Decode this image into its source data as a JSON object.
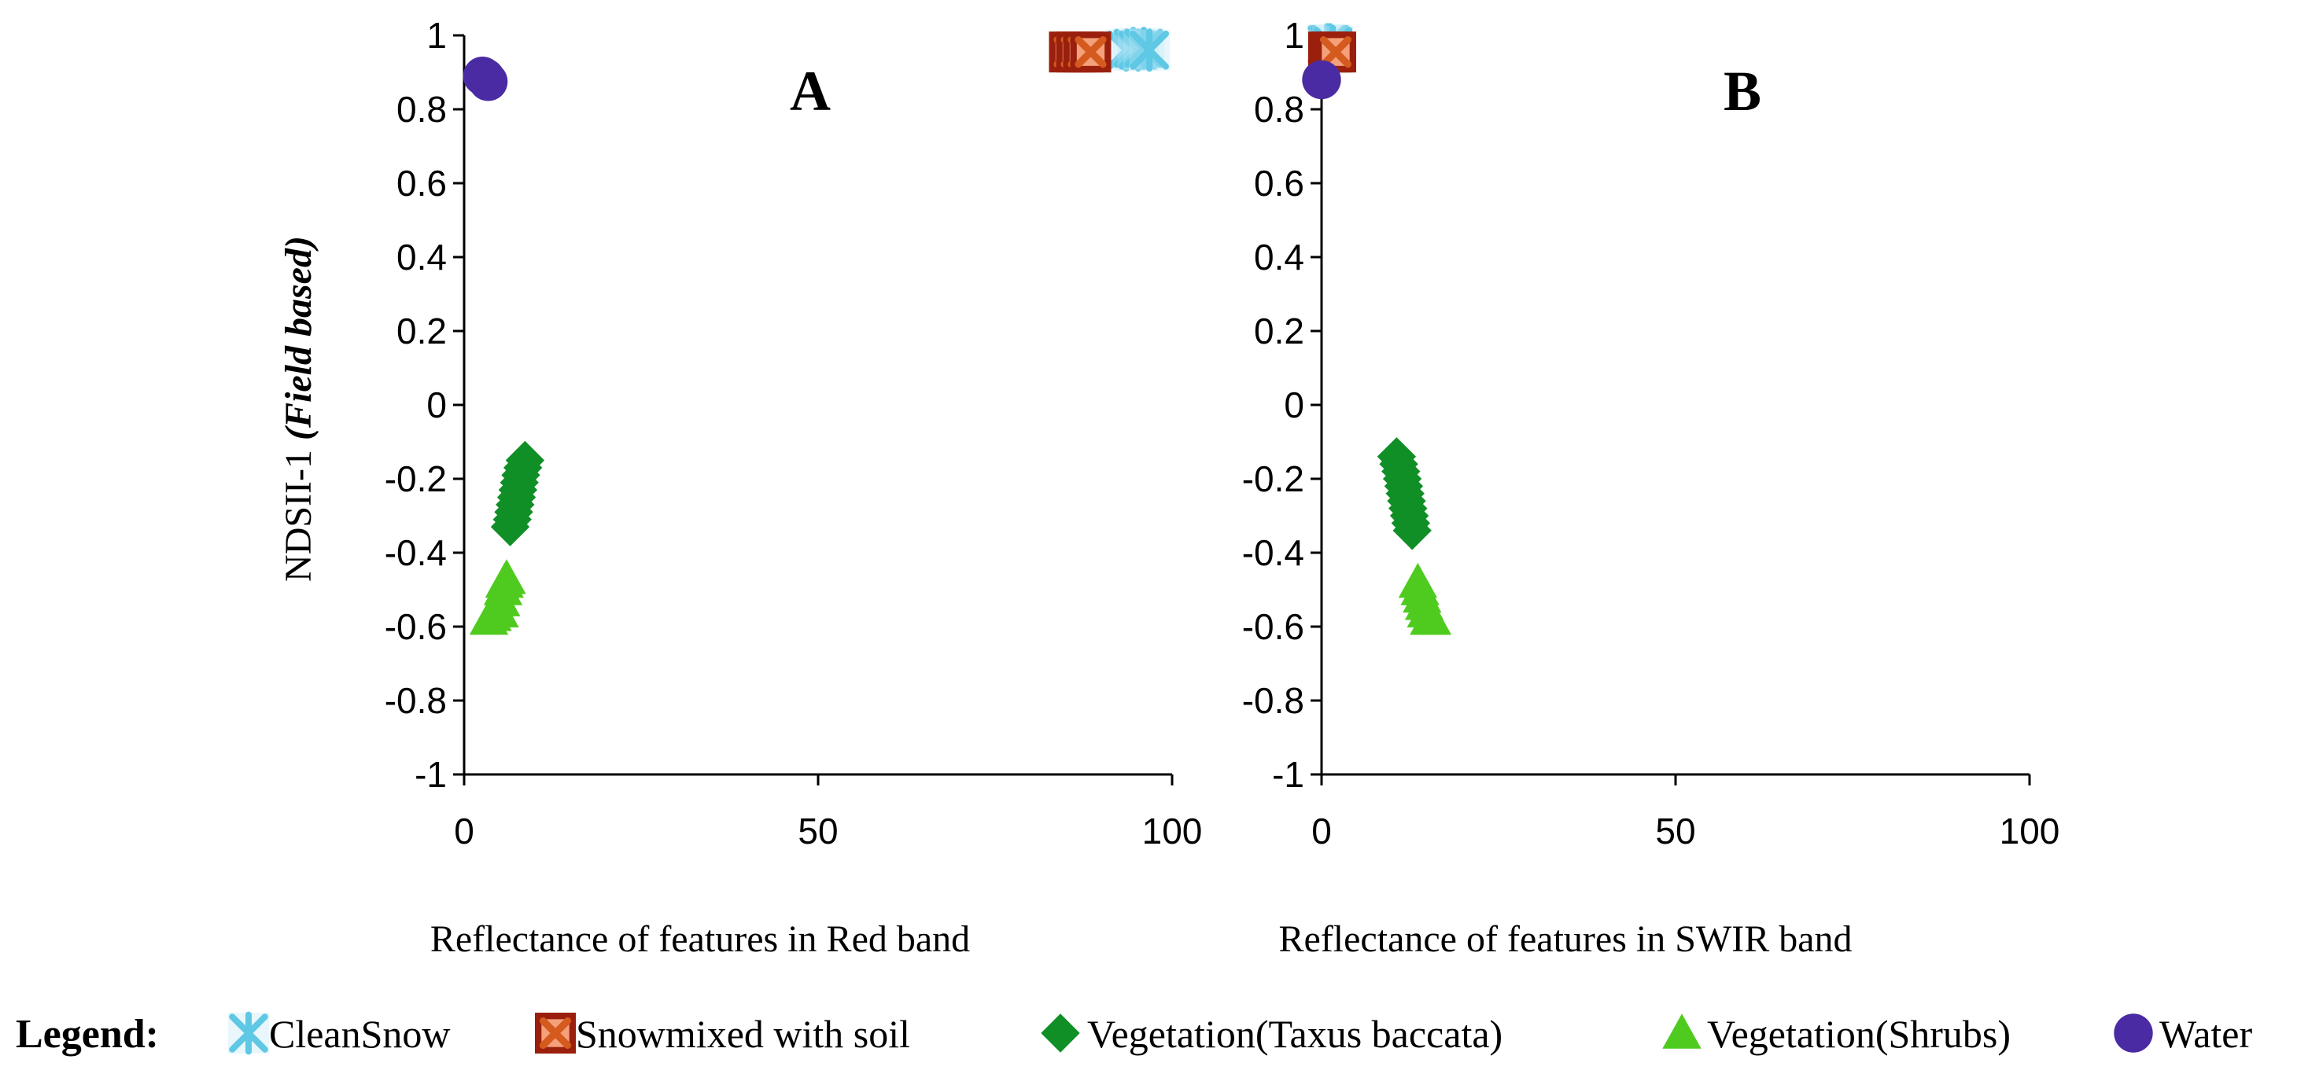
{
  "chart_data": [
    {
      "type": "scatter",
      "panel_label": "A",
      "title": "",
      "xlabel": "Reflectance of features in Red band",
      "ylabel": "NDSII-1",
      "ylabel_italic": "(Field based)",
      "xlim": [
        0,
        100
      ],
      "ylim": [
        -1,
        1
      ],
      "x_ticks": [
        "0",
        "50",
        "100"
      ],
      "y_ticks": [
        "-1",
        "-0.8",
        "-0.6",
        "-0.4",
        "-0.2",
        "0",
        "0.2",
        "0.4",
        "0.6",
        "0.8",
        "1"
      ],
      "grid": false,
      "series": [
        {
          "name": "CleanSnow",
          "points": [
            [
              93.5,
              0.96
            ],
            [
              94.5,
              0.965
            ],
            [
              95.2,
              0.96
            ],
            [
              96,
              0.965
            ],
            [
              96.8,
              0.96
            ]
          ]
        },
        {
          "name": "Snowmixed with soil",
          "points": [
            [
              85.5,
              0.955
            ],
            [
              86.5,
              0.955
            ],
            [
              87.5,
              0.955
            ],
            [
              88.5,
              0.955
            ]
          ]
        },
        {
          "name": "Vegetation(Taxus baccata)",
          "points": [
            [
              6.5,
              -0.33
            ],
            [
              6.8,
              -0.31
            ],
            [
              7,
              -0.29
            ],
            [
              7.2,
              -0.27
            ],
            [
              7.4,
              -0.25
            ],
            [
              7.6,
              -0.23
            ],
            [
              7.8,
              -0.21
            ],
            [
              8,
              -0.19
            ],
            [
              8.3,
              -0.17
            ],
            [
              8.6,
              -0.15
            ]
          ]
        },
        {
          "name": "Vegetation(Shrubs)",
          "points": [
            [
              3.5,
              -0.58
            ],
            [
              4,
              -0.57
            ],
            [
              4.5,
              -0.56
            ],
            [
              5,
              -0.56
            ],
            [
              5.2,
              -0.53
            ],
            [
              5.5,
              -0.5
            ],
            [
              5.7,
              -0.48
            ],
            [
              6,
              -0.47
            ]
          ]
        },
        {
          "name": "Water",
          "points": [
            [
              2.6,
              0.89
            ],
            [
              3,
              0.885
            ],
            [
              3.4,
              0.875
            ]
          ]
        }
      ]
    },
    {
      "type": "scatter",
      "panel_label": "B",
      "title": "",
      "xlabel": "Reflectance of features in SWIR band",
      "ylabel": "",
      "xlim": [
        0,
        100
      ],
      "ylim": [
        -1,
        1
      ],
      "x_ticks": [
        "0",
        "50",
        "100"
      ],
      "y_ticks": [
        "-1",
        "-0.8",
        "-0.6",
        "-0.4",
        "-0.2",
        "0",
        "0.2",
        "0.4",
        "0.6",
        "0.8",
        "1"
      ],
      "grid": false,
      "series": [
        {
          "name": "CleanSnow",
          "points": [
            [
              0.8,
              0.975
            ],
            [
              1.2,
              0.975
            ],
            [
              1.6,
              0.97
            ]
          ]
        },
        {
          "name": "Snowmixed with soil",
          "points": [
            [
              1,
              0.955
            ],
            [
              1.5,
              0.955
            ],
            [
              2,
              0.955
            ]
          ]
        },
        {
          "name": "Vegetation(Taxus baccata)",
          "points": [
            [
              10.6,
              -0.14
            ],
            [
              10.9,
              -0.16
            ],
            [
              11.2,
              -0.18
            ],
            [
              11.4,
              -0.2
            ],
            [
              11.6,
              -0.22
            ],
            [
              11.8,
              -0.24
            ],
            [
              12,
              -0.26
            ],
            [
              12.2,
              -0.28
            ],
            [
              12.4,
              -0.3
            ],
            [
              12.6,
              -0.32
            ],
            [
              12.8,
              -0.34
            ]
          ]
        },
        {
          "name": "Vegetation(Shrubs)",
          "points": [
            [
              13.6,
              -0.48
            ],
            [
              13.9,
              -0.5
            ],
            [
              14.2,
              -0.52
            ],
            [
              14.5,
              -0.54
            ],
            [
              14.8,
              -0.56
            ],
            [
              15.2,
              -0.58
            ],
            [
              15.6,
              -0.58
            ]
          ]
        },
        {
          "name": "Water",
          "points": [
            [
              0,
              0.88
            ]
          ]
        }
      ]
    }
  ],
  "legend": {
    "title": "Legend:",
    "items": [
      {
        "name": "CleanSnow",
        "icon": "asterisk-x-icon",
        "color": "#5ec8e5"
      },
      {
        "name": "Snowmixed with soil",
        "icon": "boxed-x-icon",
        "color": "#d45a1e"
      },
      {
        "name": "Vegetation(Taxus baccata)",
        "icon": "diamond-icon",
        "color": "#0f8f26"
      },
      {
        "name": "Vegetation(Shrubs)",
        "icon": "triangle-icon",
        "color": "#4fcb1f"
      },
      {
        "name": "Water",
        "icon": "circle-icon",
        "color": "#4a2ba3"
      }
    ]
  },
  "colors": {
    "clean_snow": "#5ec8e5",
    "snow_soil_fill": "#d45a1e",
    "snow_soil_border": "#9a1f0d",
    "taxus": "#0f8f26",
    "shrubs": "#4fcb1f",
    "water": "#4a2ba3",
    "axis": "#000000"
  }
}
